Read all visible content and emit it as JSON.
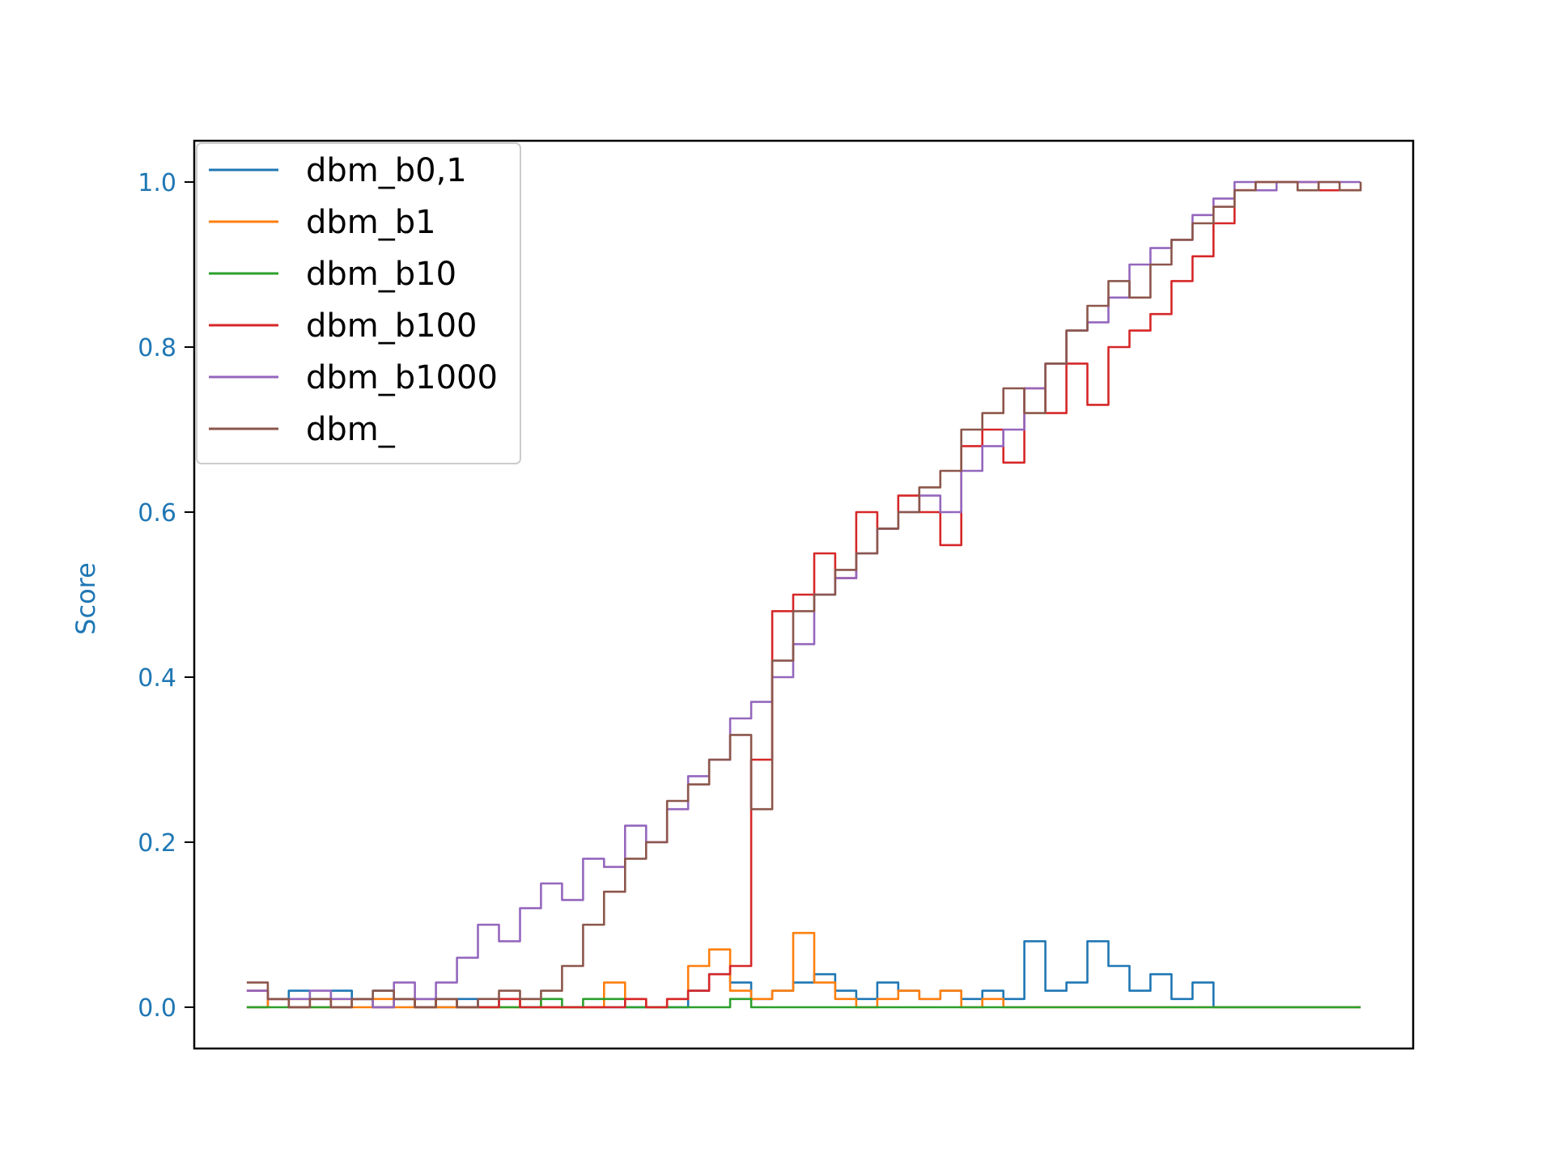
{
  "chart_data": {
    "type": "line",
    "title": "",
    "xlabel": "",
    "ylabel": "Score",
    "label_color": "#1f77b4",
    "ylim": [
      -0.05,
      1.05
    ],
    "xlim": [
      -4,
      54
    ],
    "yticks": [
      {
        "value": 0.0,
        "label": "0.0"
      },
      {
        "value": 0.2,
        "label": "0.2"
      },
      {
        "value": 0.4,
        "label": "0.4"
      },
      {
        "value": 0.6,
        "label": "0.6"
      },
      {
        "value": 0.8,
        "label": "0.8"
      },
      {
        "value": 1.0,
        "label": "1.0"
      }
    ],
    "grid": false,
    "legend_position": "upper-left",
    "x": [
      -1.5,
      -0.5,
      0.5,
      1.5,
      2.5,
      3.5,
      4.5,
      5.5,
      6.5,
      7.5,
      8.5,
      9.5,
      10.5,
      11.5,
      12.5,
      13.5,
      14.5,
      15.5,
      16.5,
      17.5,
      18.5,
      19.5,
      20.5,
      21.5,
      22.5,
      23.5,
      24.5,
      25.5,
      26.5,
      27.5,
      28.5,
      29.5,
      30.5,
      31.5,
      32.5,
      33.5,
      34.5,
      35.5,
      36.5,
      37.5,
      38.5,
      39.5,
      40.5,
      41.5,
      42.5,
      43.5,
      44.5,
      45.5,
      46.5,
      47.5,
      48.5,
      49.5,
      50.5,
      51.5
    ],
    "series": [
      {
        "name": "dbm_b0,1",
        "color": "#1f77b4",
        "values": [
          0,
          0.01,
          0.02,
          0.01,
          0.02,
          0.01,
          0.02,
          0.01,
          0.01,
          0,
          0.01,
          0,
          0.01,
          0,
          0,
          0,
          0,
          0,
          0,
          0,
          0,
          0.02,
          0.04,
          0.03,
          0.01,
          0.02,
          0.03,
          0.04,
          0.02,
          0.01,
          0.03,
          0.02,
          0.01,
          0.02,
          0.01,
          0.02,
          0.01,
          0.08,
          0.02,
          0.03,
          0.08,
          0.05,
          0.02,
          0.04,
          0.01,
          0.03,
          0,
          0,
          0,
          0,
          0,
          0,
          0,
          0
        ]
      },
      {
        "name": "dbm_b1",
        "color": "#ff7f0e",
        "values": [
          0,
          0.01,
          0.01,
          0,
          0.01,
          0,
          0.01,
          0,
          0.01,
          0,
          0,
          0,
          0,
          0.01,
          0,
          0,
          0,
          0.03,
          0.01,
          0,
          0.01,
          0.05,
          0.07,
          0.02,
          0.01,
          0.02,
          0.09,
          0.03,
          0.01,
          0,
          0.01,
          0.02,
          0.01,
          0.02,
          0,
          0.01,
          0,
          0,
          0,
          0,
          0,
          0,
          0,
          0,
          0,
          0,
          0,
          0,
          0,
          0,
          0,
          0,
          0,
          0
        ]
      },
      {
        "name": "dbm_b10",
        "color": "#2ca02c",
        "values": [
          0,
          0,
          0,
          0,
          0,
          0.01,
          0,
          0.01,
          0,
          0.01,
          0,
          0,
          0,
          0,
          0.01,
          0,
          0.01,
          0.01,
          0,
          0,
          0,
          0,
          0,
          0.01,
          0,
          0,
          0,
          0,
          0,
          0,
          0,
          0,
          0,
          0,
          0,
          0,
          0,
          0,
          0,
          0,
          0,
          0,
          0,
          0,
          0,
          0,
          0,
          0,
          0,
          0,
          0,
          0,
          0,
          0
        ]
      },
      {
        "name": "dbm_b100",
        "color": "#d62728",
        "values": [
          0.02,
          0.01,
          0,
          0.01,
          0,
          0.01,
          0,
          0.01,
          0,
          0.01,
          0,
          0,
          0.01,
          0,
          0,
          0,
          0,
          0,
          0.01,
          0,
          0.01,
          0.02,
          0.04,
          0.05,
          0.3,
          0.48,
          0.5,
          0.55,
          0.52,
          0.6,
          0.58,
          0.62,
          0.6,
          0.56,
          0.68,
          0.7,
          0.66,
          0.75,
          0.72,
          0.78,
          0.73,
          0.8,
          0.82,
          0.84,
          0.88,
          0.91,
          0.95,
          0.99,
          1.0,
          1.0,
          1.0,
          0.99,
          0.99,
          0.99
        ]
      },
      {
        "name": "dbm_b1000",
        "color": "#9467bd",
        "values": [
          0.02,
          0.01,
          0.01,
          0.02,
          0.01,
          0.01,
          0,
          0.03,
          0.01,
          0.03,
          0.06,
          0.1,
          0.08,
          0.12,
          0.15,
          0.13,
          0.18,
          0.17,
          0.22,
          0.2,
          0.24,
          0.28,
          0.3,
          0.35,
          0.37,
          0.4,
          0.44,
          0.5,
          0.52,
          0.55,
          0.58,
          0.6,
          0.62,
          0.6,
          0.65,
          0.68,
          0.7,
          0.75,
          0.78,
          0.82,
          0.83,
          0.86,
          0.9,
          0.92,
          0.93,
          0.96,
          0.98,
          1.0,
          0.99,
          1.0,
          1.0,
          1.0,
          1.0,
          1.0
        ]
      },
      {
        "name": "dbm_",
        "color": "#8c564b",
        "values": [
          0.03,
          0.01,
          0,
          0.01,
          0,
          0.01,
          0.02,
          0.01,
          0,
          0.01,
          0,
          0.01,
          0.02,
          0.01,
          0.02,
          0.05,
          0.1,
          0.14,
          0.18,
          0.2,
          0.25,
          0.27,
          0.3,
          0.33,
          0.24,
          0.42,
          0.48,
          0.5,
          0.53,
          0.55,
          0.58,
          0.6,
          0.63,
          0.65,
          0.7,
          0.72,
          0.75,
          0.72,
          0.78,
          0.82,
          0.85,
          0.88,
          0.86,
          0.9,
          0.93,
          0.95,
          0.97,
          0.99,
          1.0,
          1.0,
          0.99,
          1.0,
          0.99,
          1.0
        ]
      }
    ]
  }
}
